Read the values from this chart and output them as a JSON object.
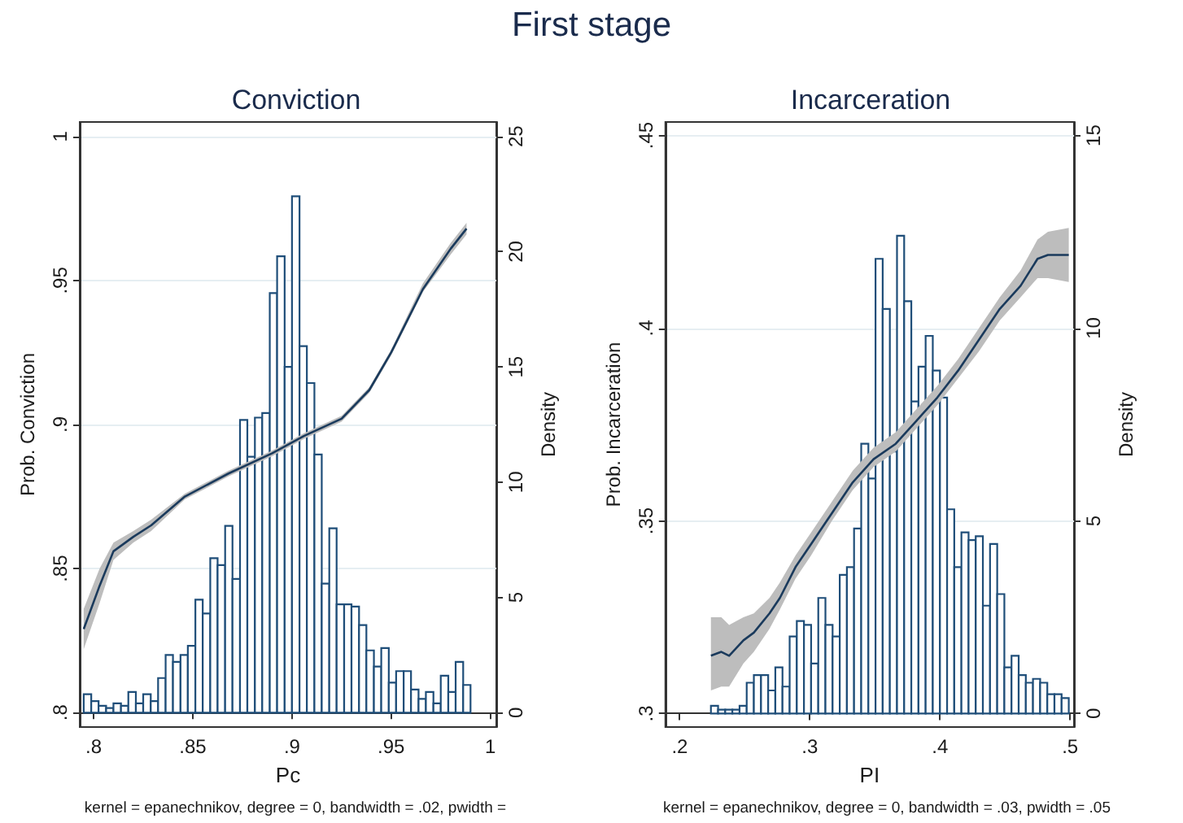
{
  "chart_data": [
    {
      "type": "histogram",
      "title": "First stage",
      "subtitle": "Conviction",
      "xlabel": "Pc",
      "ylabel": "Prob. Conviction",
      "y2label": "Density",
      "xlim": [
        0.793,
        1.003
      ],
      "xticks": [
        {
          "value": 0.8,
          "label": ".8"
        },
        {
          "value": 0.85,
          "label": ".85"
        },
        {
          "value": 0.9,
          "label": ".9"
        },
        {
          "value": 0.95,
          "label": ".95"
        },
        1
      ],
      "ylim": [
        0.795,
        1.005
      ],
      "yticks": [
        {
          "value": 0.8,
          "label": ".8"
        },
        {
          "value": 0.85,
          "label": ".85"
        },
        {
          "value": 0.9,
          "label": ".9"
        },
        {
          "value": 0.95,
          "label": ".95"
        },
        1
      ],
      "y2lim": [
        -0.625,
        25.625
      ],
      "y2ticks": [
        0,
        5,
        10,
        15,
        20,
        25
      ],
      "grid": "y",
      "series": [
        {
          "axis": "y2",
          "color": "#1f4e79",
          "bins": [
            0.795,
            0.7988,
            0.8025,
            0.8063,
            0.81,
            0.8138,
            0.8175,
            0.8213,
            0.825,
            0.8288,
            0.8325,
            0.8363,
            0.84,
            0.8438,
            0.8475,
            0.8513,
            0.855,
            0.8588,
            0.8625,
            0.8663,
            0.87,
            0.8738,
            0.8775,
            0.8813,
            0.885,
            0.8888,
            0.8925,
            0.8963,
            0.9,
            0.9038,
            0.9075,
            0.9113,
            0.915,
            0.9188,
            0.9225,
            0.9263,
            0.93,
            0.9338,
            0.9375,
            0.9413,
            0.945,
            0.9488,
            0.9525,
            0.9563,
            0.96,
            0.9638,
            0.9675,
            0.9713,
            0.975,
            0.9788,
            0.9825,
            0.9863,
            0.99
          ],
          "values": [
            0.8,
            0.5,
            0.3,
            0.2,
            0.4,
            0.3,
            0.9,
            0.4,
            0.8,
            0.5,
            1.5,
            2.5,
            2.2,
            2.5,
            2.9,
            4.9,
            4.3,
            6.7,
            6.4,
            8.1,
            5.8,
            12.7,
            11.1,
            12.8,
            13.0,
            18.2,
            19.8,
            15.0,
            22.4,
            15.9,
            14.3,
            11.2,
            5.6,
            8.0,
            4.7,
            4.7,
            4.6,
            3.8,
            2.7,
            2.0,
            2.8,
            1.3,
            1.8,
            1.8,
            1.0,
            0.6,
            0.9,
            0.4,
            1.6,
            0.9,
            2.2,
            1.2
          ]
        },
        {
          "type": "line",
          "color": "#1a3a5c",
          "x": [
            0.795,
            0.803,
            0.81,
            0.82,
            0.829,
            0.846,
            0.868,
            0.89,
            0.906,
            0.925,
            0.939,
            0.95,
            0.966,
            0.98,
            0.988
          ],
          "values": [
            0.829,
            0.844,
            0.856,
            0.861,
            0.865,
            0.875,
            0.883,
            0.89,
            0.896,
            0.902,
            0.912,
            0.925,
            0.947,
            0.961,
            0.968
          ],
          "lower": [
            0.822,
            0.838,
            0.853,
            0.859,
            0.863,
            0.874,
            0.882,
            0.889,
            0.895,
            0.901,
            0.911,
            0.924,
            0.946,
            0.959,
            0.966
          ],
          "upper": [
            0.836,
            0.85,
            0.859,
            0.863,
            0.867,
            0.876,
            0.884,
            0.891,
            0.897,
            0.903,
            0.913,
            0.926,
            0.949,
            0.963,
            0.97
          ]
        }
      ],
      "annotations": [
        "kernel = epanechnikov, degree = 0, bandwidth = .02, pwidth ="
      ]
    },
    {
      "type": "histogram",
      "subtitle": "Incarceration",
      "xlabel": "PI",
      "ylabel": "Prob. Incarceration",
      "y2label": "Density",
      "xlim": [
        0.189,
        0.503
      ],
      "xticks": [
        {
          "value": 0.2,
          "label": ".2"
        },
        {
          "value": 0.3,
          "label": ".3"
        },
        {
          "value": 0.4,
          "label": ".4"
        },
        {
          "value": 0.5,
          "label": ".5"
        }
      ],
      "ylim": [
        0.2965,
        0.4535
      ],
      "yticks": [
        {
          "value": 0.3,
          "label": ".3"
        },
        {
          "value": 0.35,
          "label": ".35"
        },
        {
          "value": 0.4,
          "label": ".4"
        },
        {
          "value": 0.45,
          "label": ".45"
        }
      ],
      "y2lim": [
        -0.35,
        15.35
      ],
      "y2ticks": [
        0,
        5,
        10,
        15
      ],
      "grid": "y",
      "series": [
        {
          "axis": "y2",
          "color": "#1f4e79",
          "bins": [
            0.224,
            0.2295,
            0.235,
            0.2405,
            0.246,
            0.2515,
            0.257,
            0.2625,
            0.268,
            0.2735,
            0.279,
            0.2845,
            0.29,
            0.2955,
            0.301,
            0.3065,
            0.312,
            0.3175,
            0.323,
            0.3285,
            0.334,
            0.3395,
            0.345,
            0.3505,
            0.356,
            0.3615,
            0.367,
            0.3725,
            0.378,
            0.3835,
            0.389,
            0.3945,
            0.4,
            0.4055,
            0.411,
            0.4165,
            0.422,
            0.4275,
            0.433,
            0.4385,
            0.444,
            0.4495,
            0.455,
            0.4605,
            0.466,
            0.4715,
            0.477,
            0.4825,
            0.488,
            0.4935,
            0.499
          ],
          "values": [
            0.2,
            0.1,
            0.1,
            0.1,
            0.2,
            0.8,
            1.0,
            1.0,
            0.6,
            1.2,
            0.7,
            2.0,
            2.4,
            2.3,
            1.3,
            3.0,
            2.3,
            2.0,
            3.6,
            3.8,
            4.8,
            7.0,
            6.1,
            11.8,
            10.5,
            6.8,
            12.4,
            10.7,
            8.1,
            9.0,
            9.8,
            8.9,
            8.2,
            5.3,
            3.8,
            4.7,
            4.5,
            4.6,
            2.8,
            4.4,
            3.1,
            1.2,
            1.5,
            1.0,
            0.8,
            0.9,
            0.8,
            0.5,
            0.5,
            0.4
          ]
        },
        {
          "type": "line",
          "color": "#1a3a5c",
          "x": [
            0.224,
            0.232,
            0.238,
            0.249,
            0.257,
            0.269,
            0.277,
            0.289,
            0.301,
            0.317,
            0.333,
            0.349,
            0.366,
            0.382,
            0.398,
            0.414,
            0.43,
            0.446,
            0.462,
            0.475,
            0.483,
            0.499
          ],
          "values": [
            0.315,
            0.316,
            0.315,
            0.319,
            0.321,
            0.326,
            0.33,
            0.338,
            0.344,
            0.352,
            0.36,
            0.366,
            0.37,
            0.376,
            0.382,
            0.389,
            0.397,
            0.405,
            0.411,
            0.418,
            0.419,
            0.419
          ],
          "lower": [
            0.306,
            0.307,
            0.307,
            0.313,
            0.316,
            0.322,
            0.327,
            0.335,
            0.341,
            0.35,
            0.358,
            0.364,
            0.368,
            0.374,
            0.38,
            0.387,
            0.394,
            0.402,
            0.408,
            0.413,
            0.413,
            0.412
          ],
          "upper": [
            0.325,
            0.325,
            0.323,
            0.325,
            0.326,
            0.33,
            0.334,
            0.341,
            0.347,
            0.355,
            0.363,
            0.369,
            0.373,
            0.379,
            0.385,
            0.392,
            0.4,
            0.408,
            0.415,
            0.423,
            0.425,
            0.426
          ]
        }
      ],
      "annotations": [
        "kernel = epanechnikov, degree = 0, bandwidth = .03, pwidth = .05"
      ]
    }
  ]
}
